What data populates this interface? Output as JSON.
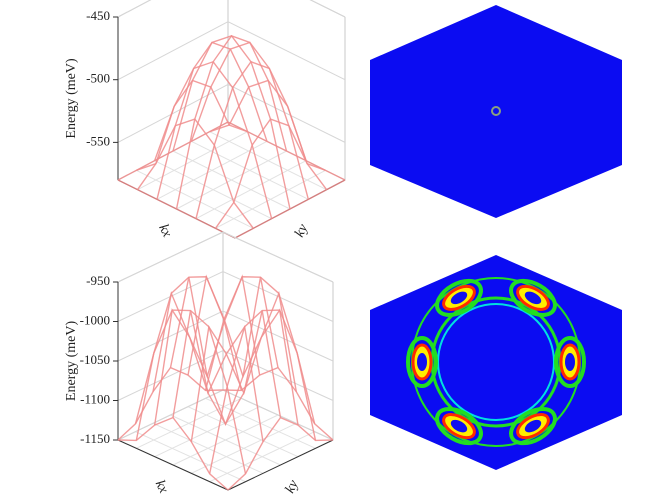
{
  "chart_data": [
    {
      "type": "surface3d",
      "z_label": "Energy (meV)",
      "x_label": "kx",
      "y_label": "ky",
      "color": "#f08c8c",
      "zlim": [
        -580,
        -450
      ],
      "zticks": [
        -450,
        -500,
        -550
      ],
      "z": [
        [
          -580,
          -580,
          -580,
          -580,
          -580,
          -580,
          -580
        ],
        [
          -580,
          -567,
          -529,
          -516,
          -529,
          -567,
          -580
        ],
        [
          -580,
          -529,
          -491,
          -478,
          -491,
          -529,
          -580
        ],
        [
          -580,
          -516,
          -478,
          -465,
          -478,
          -516,
          -580
        ],
        [
          -580,
          -529,
          -491,
          -478,
          -491,
          -529,
          -580
        ],
        [
          -580,
          -567,
          -529,
          -516,
          -529,
          -567,
          -580
        ],
        [
          -580,
          -580,
          -580,
          -580,
          -580,
          -580,
          -580
        ]
      ]
    },
    {
      "type": "surface3d",
      "z_label": "Energy (meV)",
      "x_label": "kx",
      "y_label": "ky",
      "color": "#f08c8c",
      "zlim": [
        -1150,
        -950
      ],
      "zticks": [
        -950,
        -1000,
        -1050,
        -1100,
        -1150
      ],
      "z": [
        [
          -1150,
          -1140,
          -1110,
          -1090,
          -1110,
          -1140,
          -1150
        ],
        [
          -1140,
          -1040,
          -975,
          -965,
          -975,
          -1040,
          -1140
        ],
        [
          -1110,
          -975,
          -1020,
          -1080,
          -1020,
          -975,
          -1110
        ],
        [
          -1090,
          -965,
          -1080,
          -1130,
          -1080,
          -965,
          -1090
        ],
        [
          -1110,
          -975,
          -1020,
          -1080,
          -1020,
          -975,
          -1110
        ],
        [
          -1140,
          -1040,
          -975,
          -965,
          -975,
          -1040,
          -1140
        ],
        [
          -1150,
          -1140,
          -1110,
          -1090,
          -1110,
          -1140,
          -1150
        ]
      ]
    }
  ]
}
